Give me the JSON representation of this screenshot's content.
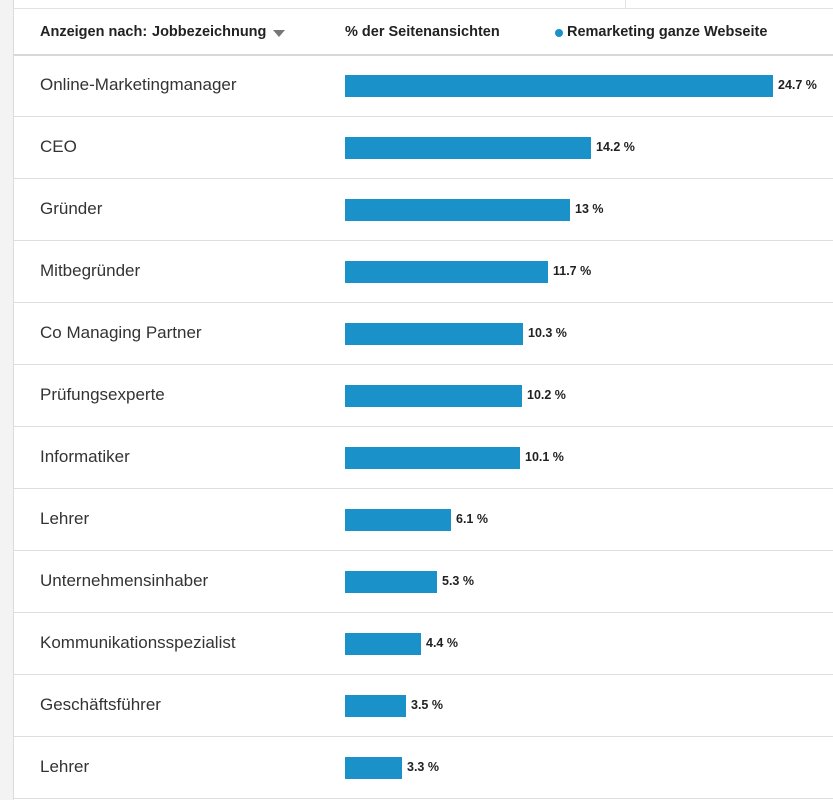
{
  "header": {
    "filter_label": "Anzeigen nach:",
    "filter_value": "Jobbezeichnung",
    "metric_label": "% der Seitenansichten",
    "legend_label": "Remarketing ganze Webseite"
  },
  "colors": {
    "bar": "#1a91c9",
    "legend": "#1a91c9"
  },
  "chart_data": {
    "type": "bar",
    "orientation": "horizontal",
    "categories": [
      "Online-Marketingmanager",
      "CEO",
      "Gründer",
      "Mitbegründer",
      "Co Managing Partner",
      "Prüfungsexperte",
      "Informatiker",
      "Lehrer",
      "Unternehmensinhaber",
      "Kommunikationsspezialist",
      "Geschäftsführer",
      "Lehrer"
    ],
    "values": [
      24.7,
      14.2,
      13,
      11.7,
      10.3,
      10.2,
      10.1,
      6.1,
      5.3,
      4.4,
      3.5,
      3.3
    ],
    "value_labels": [
      "24.7 %",
      "14.2 %",
      "13 %",
      "11.7 %",
      "10.3 %",
      "10.2 %",
      "10.1 %",
      "6.1 %",
      "5.3 %",
      "4.4 %",
      "3.5 %",
      "3.3 %"
    ],
    "series": [
      {
        "name": "Remarketing ganze Webseite",
        "values": [
          24.7,
          14.2,
          13,
          11.7,
          10.3,
          10.2,
          10.1,
          6.1,
          5.3,
          4.4,
          3.5,
          3.3
        ]
      }
    ],
    "grid": false,
    "legend": "top-right"
  }
}
